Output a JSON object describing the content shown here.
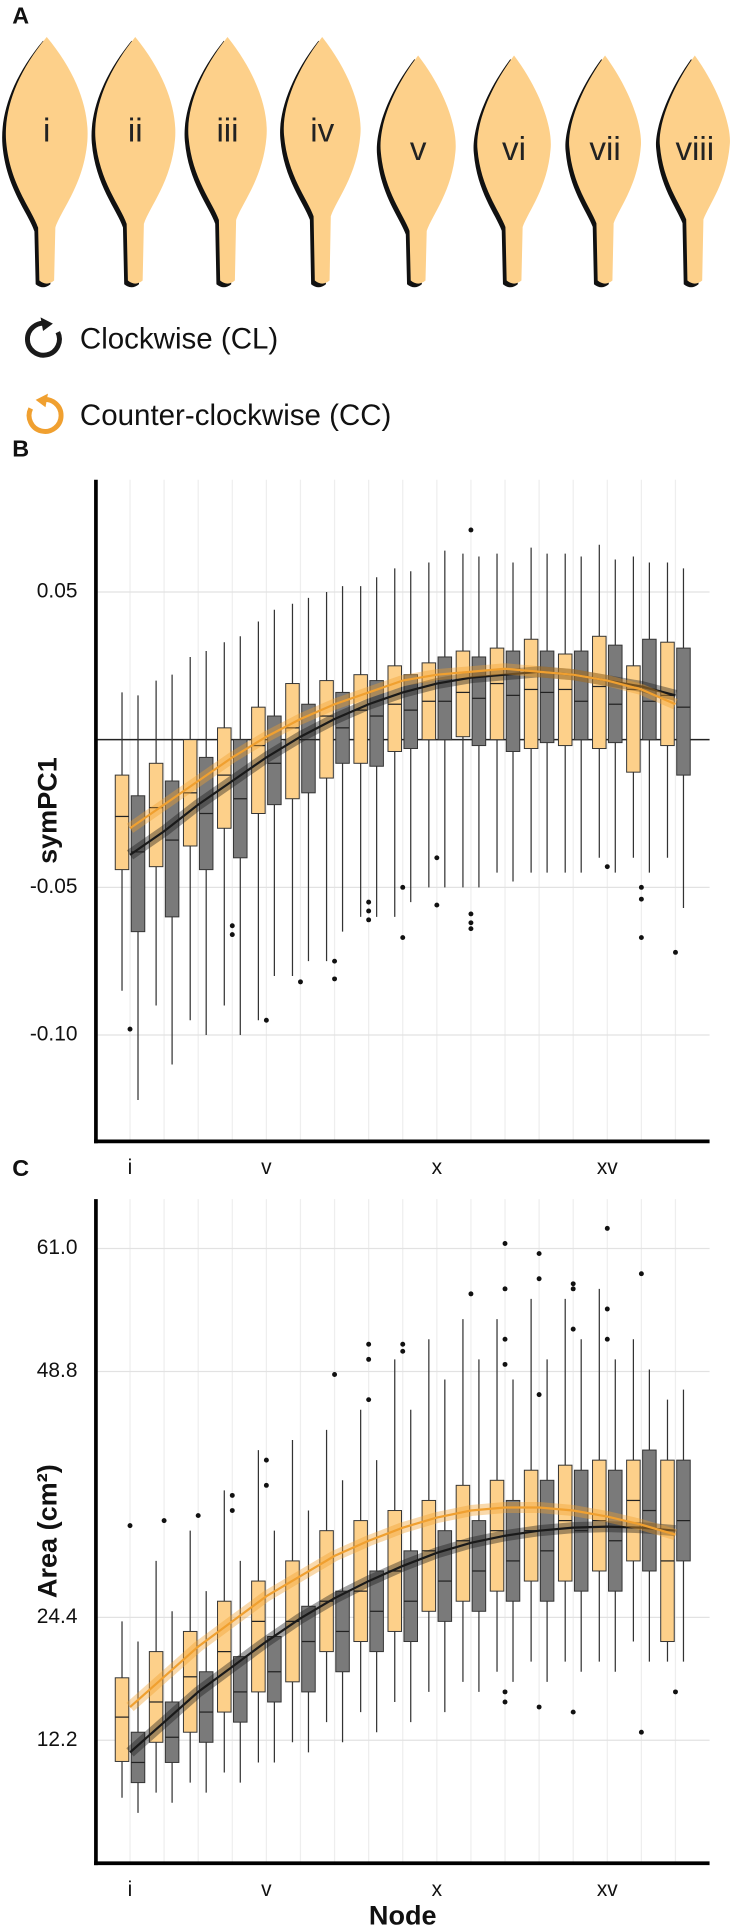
{
  "panel_a": {
    "label": "A",
    "leaves": [
      "i",
      "ii",
      "iii",
      "iv",
      "v",
      "vi",
      "vii",
      "viii"
    ]
  },
  "chart_data": [
    {
      "type": "box",
      "panel_label": "B",
      "ylabel": "symPC1",
      "categories": [
        "i",
        null,
        null,
        null,
        "v",
        null,
        null,
        null,
        null,
        "x",
        null,
        null,
        null,
        null,
        "xv",
        null,
        null
      ],
      "ylim": [
        -0.136,
        0.088
      ],
      "yticks": [
        0.05,
        -0.05,
        {
          "value": -0.1,
          "label": "-0.10"
        }
      ],
      "reference_line": 0,
      "grid": true,
      "series": [
        {
          "name": "Clockwise (CL)",
          "color": "#7a7a7a",
          "line_color": "#1a1a1a",
          "min": [
            -0.122,
            -0.11,
            -0.1,
            -0.1,
            -0.08,
            -0.075,
            -0.065,
            -0.06,
            -0.055,
            -0.05,
            -0.05,
            -0.048,
            -0.045,
            -0.045,
            -0.045,
            -0.045,
            -0.057
          ],
          "q1": [
            -0.065,
            -0.06,
            -0.044,
            -0.04,
            -0.022,
            -0.018,
            -0.008,
            -0.009,
            -0.003,
            0.0,
            -0.002,
            -0.004,
            -0.001,
            0.0,
            -0.001,
            0.0,
            -0.012
          ],
          "median": [
            -0.038,
            -0.034,
            -0.025,
            -0.02,
            -0.008,
            0.0,
            0.004,
            0.008,
            0.01,
            0.013,
            0.014,
            0.015,
            0.016,
            0.013,
            0.012,
            0.013,
            0.011
          ],
          "q3": [
            -0.019,
            -0.014,
            -0.006,
            0.0,
            0.008,
            0.012,
            0.016,
            0.02,
            0.022,
            0.028,
            0.028,
            0.03,
            0.03,
            0.03,
            0.032,
            0.034,
            0.031
          ],
          "max": [
            0.015,
            0.022,
            0.03,
            0.035,
            0.044,
            0.048,
            0.052,
            0.055,
            0.057,
            0.064,
            0.062,
            0.06,
            0.063,
            0.062,
            0.061,
            0.06,
            0.058
          ],
          "fit": [
            -0.039,
            -0.031,
            -0.022,
            -0.014,
            -0.006,
            0.001,
            0.007,
            0.012,
            0.016,
            0.019,
            0.021,
            0.022,
            0.023,
            0.022,
            0.02,
            0.018,
            0.015
          ]
        },
        {
          "name": "Counter-clockwise (CC)",
          "color": "#fdd08a",
          "line_color": "#f0a030",
          "min": [
            -0.085,
            -0.09,
            -0.095,
            -0.09,
            -0.095,
            -0.08,
            -0.075,
            -0.06,
            -0.06,
            -0.05,
            -0.05,
            -0.045,
            -0.045,
            -0.045,
            -0.04,
            -0.04,
            -0.04
          ],
          "q1": [
            -0.044,
            -0.043,
            -0.036,
            -0.03,
            -0.025,
            -0.02,
            -0.013,
            -0.008,
            -0.004,
            0.0,
            0.001,
            0.0,
            -0.003,
            -0.002,
            -0.003,
            -0.011,
            -0.002
          ],
          "median": [
            -0.026,
            -0.023,
            -0.018,
            -0.012,
            -0.002,
            0.004,
            0.008,
            0.01,
            0.012,
            0.013,
            0.016,
            0.019,
            0.017,
            0.017,
            0.018,
            0.017,
            0.015
          ],
          "q3": [
            -0.012,
            -0.008,
            0.0,
            0.004,
            0.011,
            0.019,
            0.02,
            0.022,
            0.025,
            0.026,
            0.03,
            0.031,
            0.034,
            0.029,
            0.035,
            0.025,
            0.033
          ],
          "max": [
            0.016,
            0.02,
            0.028,
            0.033,
            0.04,
            0.046,
            0.05,
            0.052,
            0.058,
            0.06,
            0.063,
            0.063,
            0.065,
            0.063,
            0.066,
            0.062,
            0.06
          ],
          "fit": [
            -0.03,
            -0.022,
            -0.014,
            -0.006,
            0.001,
            0.007,
            0.012,
            0.016,
            0.02,
            0.022,
            0.023,
            0.024,
            0.023,
            0.022,
            0.02,
            0.017,
            0.012
          ]
        }
      ],
      "outliers": {
        "x": [
          1,
          4,
          4,
          5,
          6,
          7,
          7,
          8,
          8,
          8,
          9,
          9,
          10,
          10,
          11,
          11,
          11,
          11,
          15,
          16,
          16,
          16,
          17
        ],
        "y": [
          -0.098,
          -0.063,
          -0.066,
          -0.095,
          -0.082,
          -0.081,
          -0.075,
          -0.055,
          -0.058,
          -0.061,
          -0.05,
          -0.067,
          -0.056,
          -0.04,
          -0.059,
          -0.062,
          -0.064,
          0.071,
          -0.043,
          -0.05,
          -0.054,
          -0.067,
          -0.072
        ]
      }
    },
    {
      "type": "box",
      "panel_label": "C",
      "ylabel": "Area (cm²)",
      "xlabel": "Node",
      "categories": [
        "i",
        null,
        null,
        null,
        "v",
        null,
        null,
        null,
        null,
        "x",
        null,
        null,
        null,
        null,
        "xv",
        null,
        null
      ],
      "ylim": [
        0,
        65.9
      ],
      "yticks": [
        12.2,
        24.4,
        48.8,
        {
          "value": 61,
          "label": "61.0"
        }
      ],
      "grid": true,
      "series": [
        {
          "color": "#7a7a7a",
          "line_color": "#1a1a1a",
          "min": [
            5,
            6,
            7,
            8,
            10,
            11,
            12,
            13,
            14,
            15,
            17,
            18,
            18,
            19,
            19,
            20,
            20
          ],
          "q1": [
            8,
            10,
            12,
            14,
            16,
            17,
            19,
            21,
            22,
            24,
            25,
            26,
            26,
            27,
            27,
            29,
            30
          ],
          "median": [
            10,
            12.5,
            15,
            17,
            19,
            22,
            23,
            25,
            26,
            28,
            29,
            30,
            31,
            33,
            32,
            35,
            34
          ],
          "q3": [
            13,
            16,
            19,
            20.5,
            22.5,
            25.5,
            27,
            29,
            31,
            33,
            34,
            36,
            38,
            39,
            39,
            41,
            40
          ],
          "max": [
            22,
            25,
            27,
            30,
            33,
            35,
            38,
            40,
            45,
            48,
            50,
            48,
            50,
            52,
            50,
            49,
            47
          ],
          "fit": [
            11,
            14,
            17,
            19.5,
            22,
            24.3,
            26.3,
            28,
            29.5,
            30.8,
            31.8,
            32.5,
            33,
            33.3,
            33.4,
            33.3,
            33
          ]
        },
        {
          "color": "#fdd08a",
          "line_color": "#f0a030",
          "min": [
            6.5,
            7,
            8,
            9,
            10,
            12,
            14,
            15,
            16,
            17,
            18,
            19,
            20,
            20,
            20,
            22,
            20
          ],
          "q1": [
            10.1,
            12,
            13,
            15,
            17,
            18,
            21,
            22,
            23,
            25,
            26,
            27,
            28,
            28,
            29,
            30,
            22
          ],
          "median": [
            14.5,
            16,
            18.5,
            21,
            24,
            24,
            26,
            27,
            29,
            31,
            32,
            33,
            33,
            34,
            34,
            36,
            30
          ],
          "q3": [
            18.4,
            21,
            23,
            26,
            28,
            30,
            33,
            34,
            35,
            36,
            37.5,
            38,
            39,
            39.5,
            40,
            40,
            40
          ],
          "max": [
            24,
            30,
            33,
            37,
            41,
            42,
            43,
            45,
            50,
            52,
            54,
            54,
            56,
            56,
            57,
            52,
            46
          ],
          "fit": [
            15.5,
            18.5,
            21.5,
            24,
            26.5,
            28.5,
            30.5,
            32,
            33.3,
            34.3,
            35,
            35.3,
            35.3,
            35,
            34.4,
            33.6,
            32.6
          ]
        }
      ],
      "outliers": {
        "x": [
          1,
          2,
          3,
          4,
          4,
          5,
          5,
          7,
          8,
          8,
          8,
          9,
          9,
          11,
          12,
          12,
          12,
          12,
          12,
          12,
          13,
          13,
          13,
          13,
          14,
          14,
          14,
          14,
          15,
          15,
          15,
          16,
          16,
          17
        ],
        "y": [
          33.5,
          34,
          34.5,
          35,
          36.5,
          40,
          37.5,
          48.5,
          50,
          51.5,
          46,
          51.5,
          50.8,
          56.5,
          61.5,
          57,
          52,
          49.5,
          17,
          16,
          60.5,
          58,
          46.5,
          15.5,
          57.5,
          57,
          53,
          15,
          52,
          55,
          63,
          58.5,
          13,
          17
        ]
      }
    }
  ]
}
